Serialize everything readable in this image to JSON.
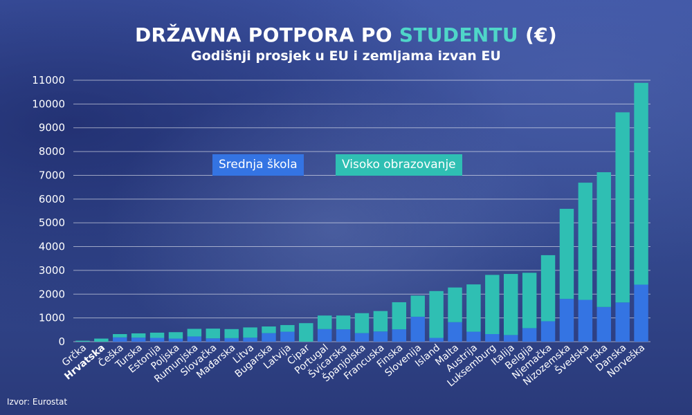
{
  "title": {
    "main": "DRŽAVNA POTPORA PO ",
    "accent": "STUDENTU",
    "suffix": " (€)"
  },
  "subtitle": "Godišnji prosjek u EU i zemljama izvan EU",
  "legend": {
    "secondary": "Srednja škola",
    "tertiary": "Visoko obrazovanje"
  },
  "source": "Izvor: Eurostat",
  "colors": {
    "secondary": "#3474e3",
    "tertiary": "#2fbfb3",
    "accent": "#4fd6c8"
  },
  "chart_data": {
    "type": "bar",
    "stacked": true,
    "ylim": [
      0,
      11000
    ],
    "yticks": [
      0,
      1000,
      2000,
      3000,
      4000,
      5000,
      6000,
      7000,
      8000,
      9000,
      10000,
      11000
    ],
    "grid": true,
    "legend_placement": "inside-left",
    "highlight_category": "Hrvatska",
    "categories": [
      "Grčka",
      "Hrvatska",
      "Češka",
      "Turska",
      "Estonija",
      "Poljska",
      "Rumunjska",
      "Slovačka",
      "Mađarska",
      "Litva",
      "Bugarska",
      "Latvija",
      "Cipar",
      "Portugal",
      "Švicarska",
      "Španjolska",
      "Francuska",
      "Finska",
      "Slovenija",
      "Island",
      "Malta",
      "Austrija",
      "Luksemburg",
      "Italija",
      "Belgija",
      "Njemačka",
      "Nizozemska",
      "Švedska",
      "Irska",
      "Danska",
      "Norveška"
    ],
    "series": [
      {
        "name": "Srednja škola",
        "values": [
          0,
          0,
          180,
          170,
          160,
          130,
          220,
          140,
          150,
          170,
          360,
          420,
          0,
          530,
          520,
          360,
          430,
          520,
          1050,
          160,
          820,
          420,
          320,
          280,
          570,
          860,
          1800,
          1760,
          1460,
          1650,
          2400
        ]
      },
      {
        "name": "Visoko obrazovanje",
        "values": [
          40,
          130,
          140,
          180,
          220,
          270,
          320,
          410,
          380,
          430,
          280,
          280,
          780,
          570,
          580,
          840,
          860,
          1140,
          890,
          1970,
          1460,
          1990,
          2490,
          2570,
          2330,
          2780,
          3790,
          4930,
          5670,
          8000,
          8490
        ]
      }
    ]
  }
}
